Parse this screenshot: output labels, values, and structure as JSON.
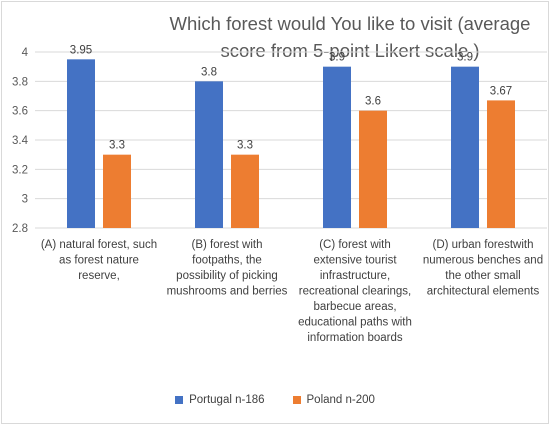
{
  "chart_data": {
    "type": "bar",
    "title": "Which forest would You like to visit (average score from 5-point Likert scale )",
    "categories": [
      [
        "(A) natural forest, such",
        "as forest nature",
        "reserve,"
      ],
      [
        "(B) forest with",
        "footpaths, the",
        "possibility of picking",
        "mushrooms and berries"
      ],
      [
        "(C) forest with",
        "extensive tourist",
        "infrastructure,",
        "recreational clearings,",
        "barbecue areas,",
        "educational paths with",
        "information boards"
      ],
      [
        "(D) urban forestwith",
        "numerous benches and",
        "the other small",
        "architectural elements"
      ]
    ],
    "series": [
      {
        "name": "Portugal n-186",
        "color": "#4472c4",
        "values": [
          3.95,
          3.8,
          3.9,
          3.9
        ],
        "labels": [
          "3.95",
          "3.8",
          "3.9",
          "3.9"
        ]
      },
      {
        "name": "Poland n-200",
        "color": "#ed7d31",
        "values": [
          3.3,
          3.3,
          3.6,
          3.67
        ],
        "labels": [
          "3.3",
          "3.3",
          "3.6",
          "3.67"
        ]
      }
    ],
    "ylim": [
      2.8,
      4.0
    ],
    "yticks": [
      "2.8",
      "3",
      "3.2",
      "3.4",
      "3.6",
      "3.8",
      "4"
    ],
    "grid": true,
    "legend": "bottom"
  }
}
